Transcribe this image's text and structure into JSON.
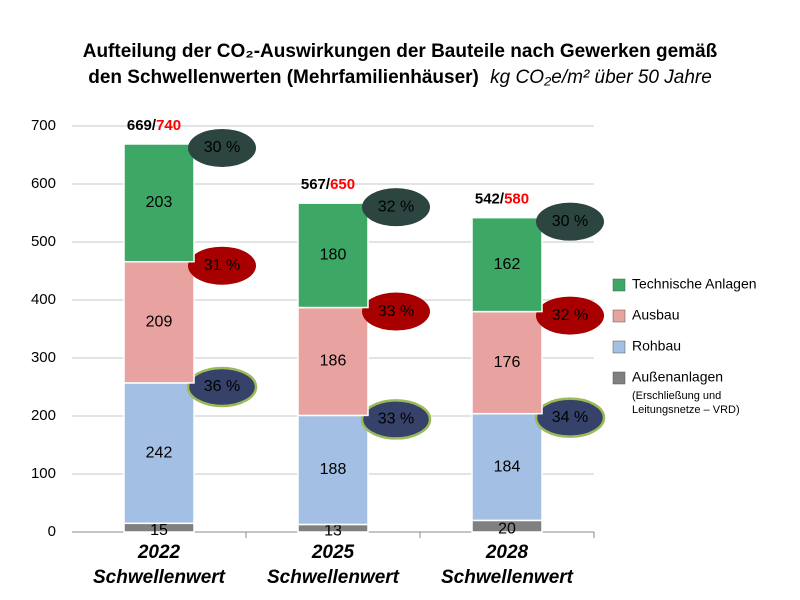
{
  "chart_data": {
    "type": "stacked-bar",
    "title": [
      "Aufteilung der CO₂-Auswirkungen der Bauteile nach Gewerken gemäß",
      "den Schwellenwerten (Mehrfamilienhäuser)"
    ],
    "unit": "kg CO₂e/m² über 50 Jahre",
    "categories": [
      [
        "2022",
        "Schwellenwert"
      ],
      [
        "2025",
        "Schwellenwert"
      ],
      [
        "2028",
        "Schwellenwert"
      ]
    ],
    "series": [
      {
        "name": "Außenanlagen",
        "note": [
          "(Erschließung und",
          "Leitungsnetze – VRD)"
        ],
        "color": "#808080",
        "values": [
          15,
          13,
          20
        ]
      },
      {
        "name": "Rohbau",
        "color": "#a3bfe3",
        "values": [
          242,
          188,
          184
        ],
        "shares": [
          36,
          33,
          34
        ],
        "share_labels": [
          "36 %",
          "33 %",
          "34 %"
        ],
        "share_color": "#36426a"
      },
      {
        "name": "Ausbau",
        "color": "#e8a3a0",
        "values": [
          209,
          186,
          176
        ],
        "shares": [
          31,
          33,
          32
        ],
        "share_labels": [
          "31 %",
          "33 %",
          "32 %"
        ],
        "share_color": "#a80000"
      },
      {
        "name": "Technische Anlagen",
        "color": "#3da866",
        "values": [
          203,
          180,
          162
        ],
        "shares": [
          30,
          32,
          30
        ],
        "share_labels": [
          "30 %",
          "32 %",
          "30 %"
        ],
        "share_color": "#2d4540"
      }
    ],
    "totals": [
      669,
      567,
      542
    ],
    "total_separator": "/",
    "limits": [
      740,
      650,
      580
    ],
    "limit_color": "#ff0000",
    "ylim": [
      0,
      700
    ],
    "yticks": [
      0,
      100,
      200,
      300,
      400,
      500,
      600,
      700
    ],
    "grid": true
  }
}
